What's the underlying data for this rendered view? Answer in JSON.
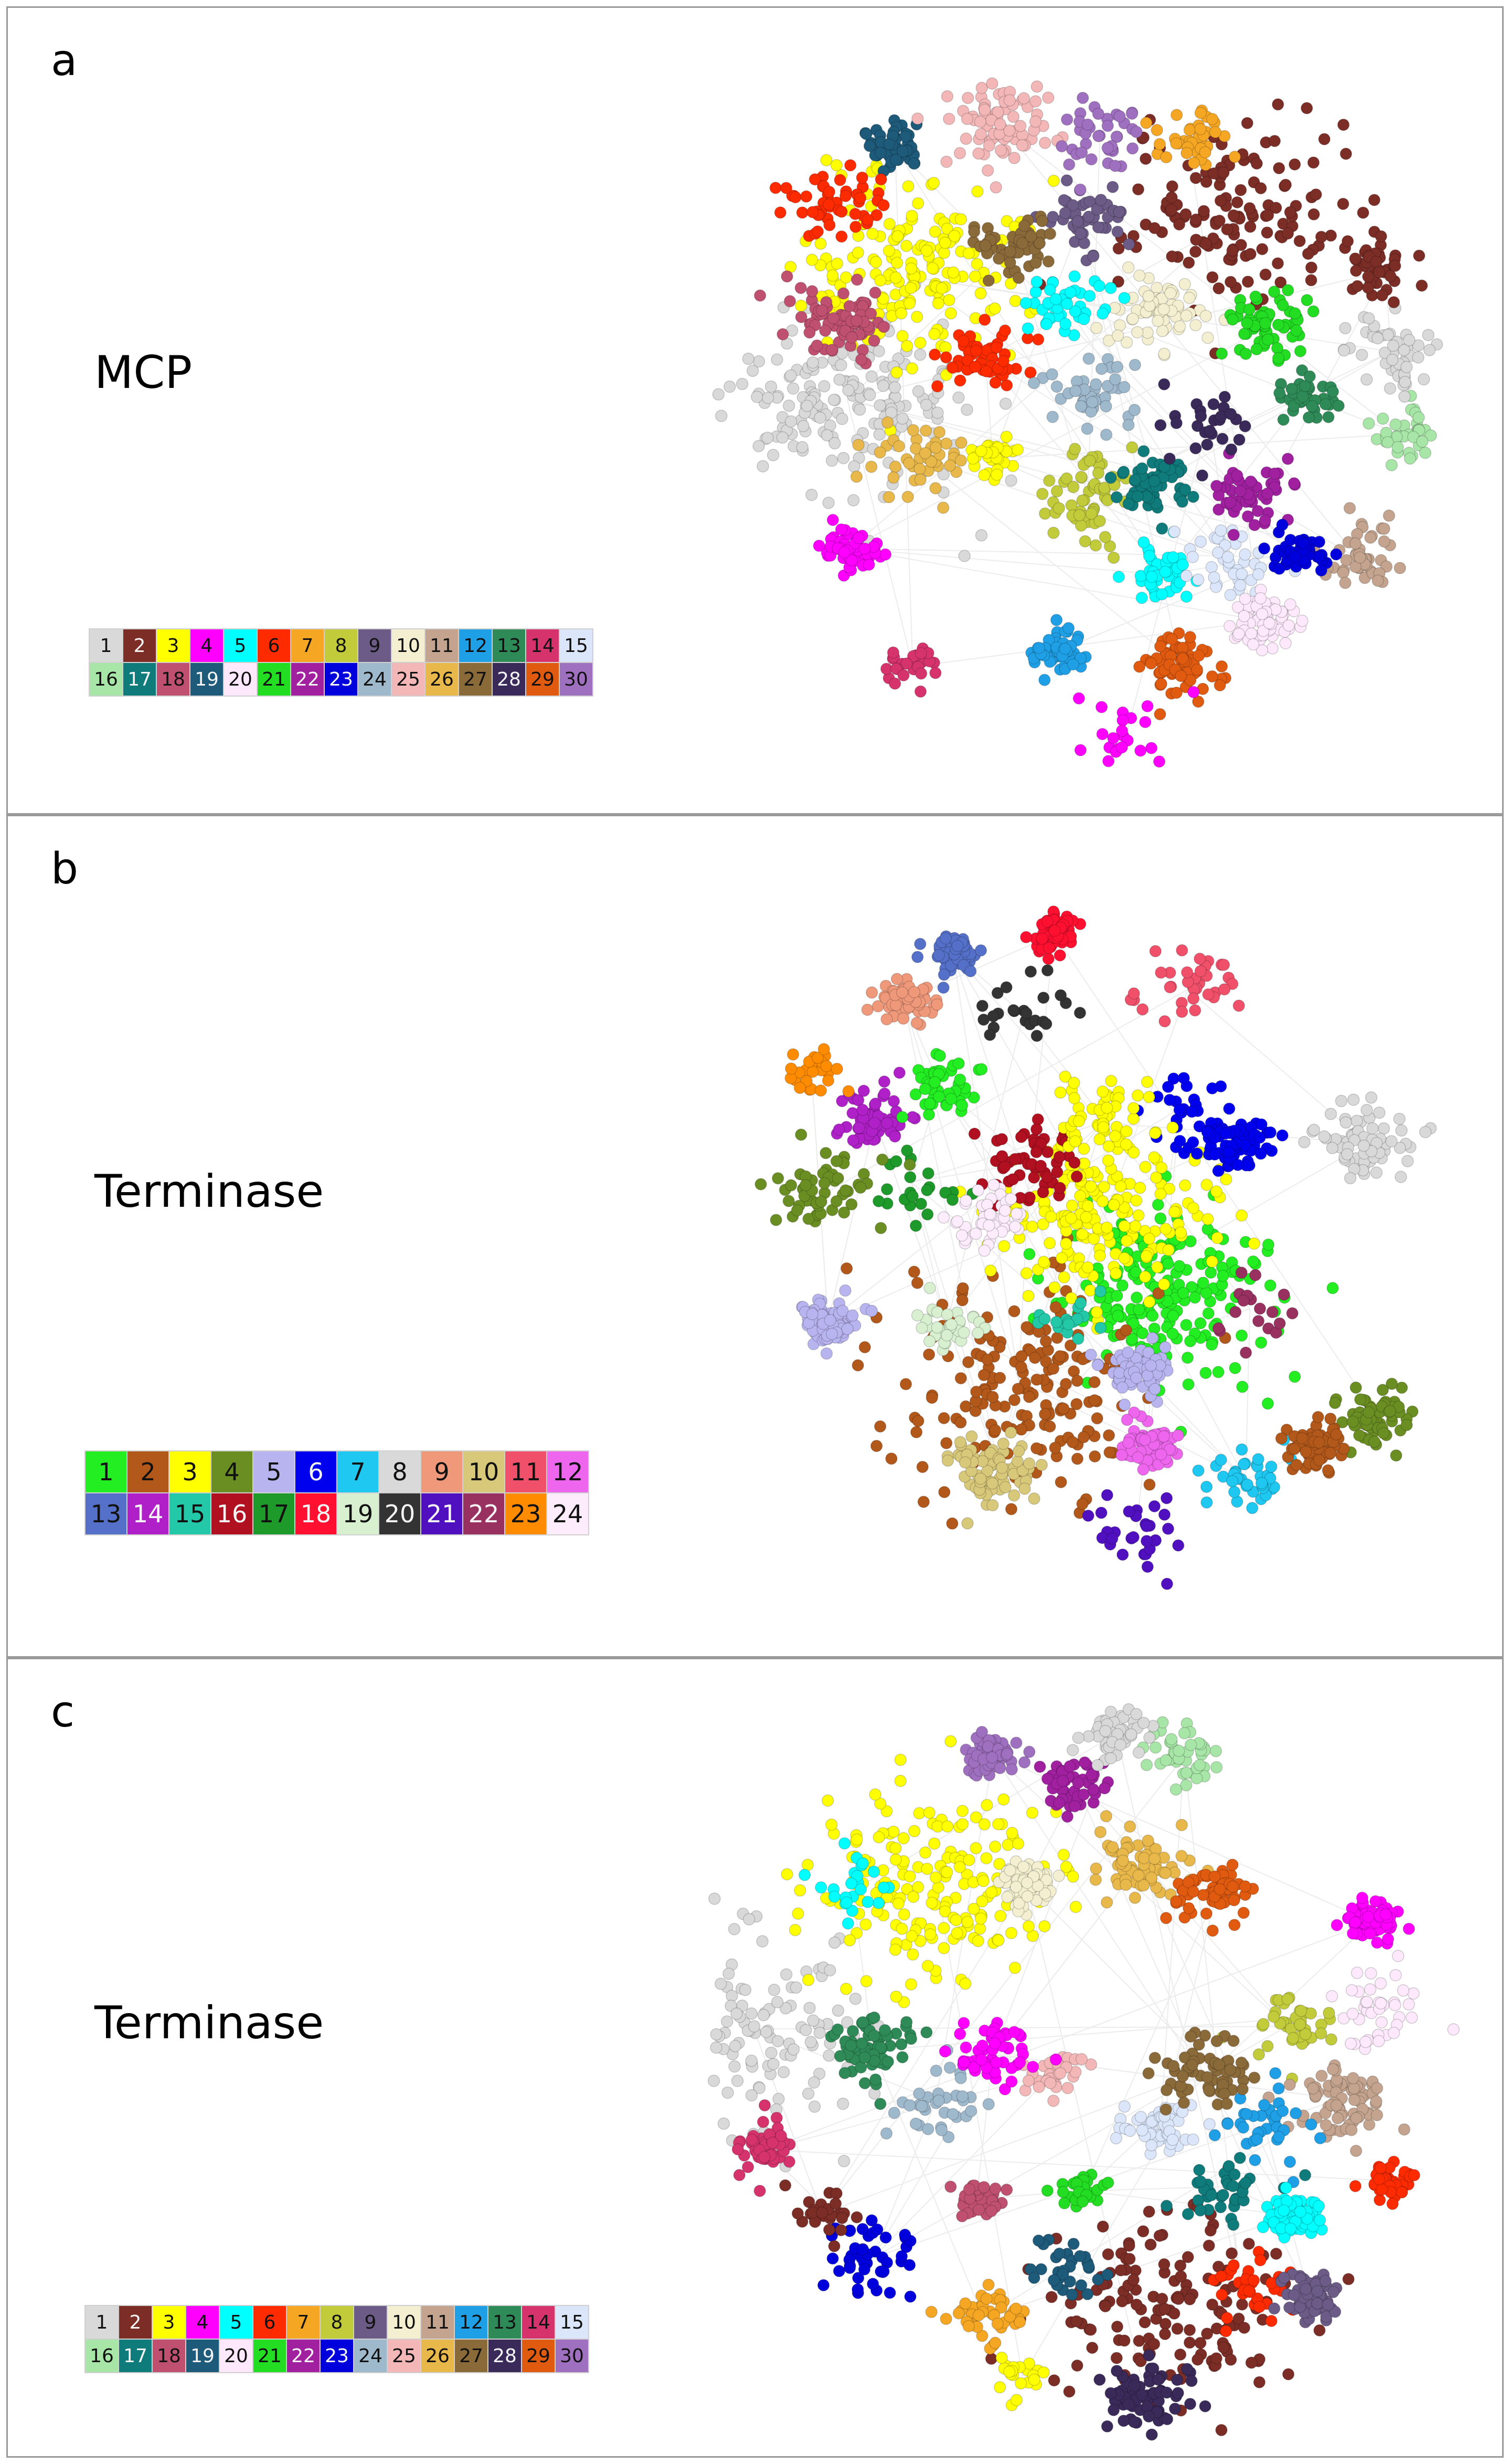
{
  "panels": [
    {
      "id": "a",
      "letter": "a",
      "title": "MCP",
      "legend": [
        {
          "n": "1",
          "color": "#d9d9d9"
        },
        {
          "n": "2",
          "color": "#7b2d26"
        },
        {
          "n": "3",
          "color": "#ffff00"
        },
        {
          "n": "4",
          "color": "#ff00ff"
        },
        {
          "n": "5",
          "color": "#00ffff"
        },
        {
          "n": "6",
          "color": "#ff2b00"
        },
        {
          "n": "7",
          "color": "#f5a623"
        },
        {
          "n": "8",
          "color": "#c2cc3a"
        },
        {
          "n": "9",
          "color": "#6b5b86"
        },
        {
          "n": "10",
          "color": "#f3efd0"
        },
        {
          "n": "11",
          "color": "#c4a48f"
        },
        {
          "n": "12",
          "color": "#1fa0e6"
        },
        {
          "n": "13",
          "color": "#2e8b57"
        },
        {
          "n": "14",
          "color": "#d6336c"
        },
        {
          "n": "15",
          "color": "#dbe6fb"
        },
        {
          "n": "16",
          "color": "#a8e6a8"
        },
        {
          "n": "17",
          "color": "#0f7b7b"
        },
        {
          "n": "18",
          "color": "#c05070"
        },
        {
          "n": "19",
          "color": "#1e5a7a"
        },
        {
          "n": "20",
          "color": "#fde9fb"
        },
        {
          "n": "21",
          "color": "#22dd22"
        },
        {
          "n": "22",
          "color": "#a020a0"
        },
        {
          "n": "23",
          "color": "#0000dd"
        },
        {
          "n": "24",
          "color": "#9eb8cc"
        },
        {
          "n": "25",
          "color": "#f4b7b7"
        },
        {
          "n": "26",
          "color": "#e8b84a"
        },
        {
          "n": "27",
          "color": "#8b6a3a"
        },
        {
          "n": "28",
          "color": "#3a2a5a"
        },
        {
          "n": "29",
          "color": "#e05a10"
        },
        {
          "n": "30",
          "color": "#a070c0"
        }
      ]
    },
    {
      "id": "b",
      "letter": "b",
      "title": "Terminase",
      "legend": [
        {
          "n": "1",
          "color": "#22ee22"
        },
        {
          "n": "2",
          "color": "#b2581a"
        },
        {
          "n": "3",
          "color": "#ffff00"
        },
        {
          "n": "4",
          "color": "#6b8e23"
        },
        {
          "n": "5",
          "color": "#b8b4f0"
        },
        {
          "n": "6",
          "color": "#0000ee"
        },
        {
          "n": "7",
          "color": "#1ec8f0"
        },
        {
          "n": "8",
          "color": "#d9d9d9"
        },
        {
          "n": "9",
          "color": "#f0987a"
        },
        {
          "n": "10",
          "color": "#d8c87a"
        },
        {
          "n": "11",
          "color": "#f0506a"
        },
        {
          "n": "12",
          "color": "#ee66ee"
        },
        {
          "n": "13",
          "color": "#5570c8"
        },
        {
          "n": "14",
          "color": "#b020c8"
        },
        {
          "n": "15",
          "color": "#22c8a8"
        },
        {
          "n": "16",
          "color": "#b01020"
        },
        {
          "n": "17",
          "color": "#1e9a2a"
        },
        {
          "n": "18",
          "color": "#ff1030"
        },
        {
          "n": "19",
          "color": "#d8f0d0"
        },
        {
          "n": "20",
          "color": "#333333"
        },
        {
          "n": "21",
          "color": "#5010c0"
        },
        {
          "n": "22",
          "color": "#983060"
        },
        {
          "n": "23",
          "color": "#ff8c00"
        },
        {
          "n": "24",
          "color": "#fcecfc"
        }
      ]
    },
    {
      "id": "c",
      "letter": "c",
      "title": "Terminase",
      "legend": [
        {
          "n": "1",
          "color": "#d9d9d9"
        },
        {
          "n": "2",
          "color": "#7b2d26"
        },
        {
          "n": "3",
          "color": "#ffff00"
        },
        {
          "n": "4",
          "color": "#ff00ff"
        },
        {
          "n": "5",
          "color": "#00ffff"
        },
        {
          "n": "6",
          "color": "#ff2b00"
        },
        {
          "n": "7",
          "color": "#f5a623"
        },
        {
          "n": "8",
          "color": "#c2cc3a"
        },
        {
          "n": "9",
          "color": "#6b5b86"
        },
        {
          "n": "10",
          "color": "#f3efd0"
        },
        {
          "n": "11",
          "color": "#c4a48f"
        },
        {
          "n": "12",
          "color": "#1fa0e6"
        },
        {
          "n": "13",
          "color": "#2e8b57"
        },
        {
          "n": "14",
          "color": "#d6336c"
        },
        {
          "n": "15",
          "color": "#dbe6fb"
        },
        {
          "n": "16",
          "color": "#a8e6a8"
        },
        {
          "n": "17",
          "color": "#0f7b7b"
        },
        {
          "n": "18",
          "color": "#c05070"
        },
        {
          "n": "19",
          "color": "#1e5a7a"
        },
        {
          "n": "20",
          "color": "#fde9fb"
        },
        {
          "n": "21",
          "color": "#22dd22"
        },
        {
          "n": "22",
          "color": "#a020a0"
        },
        {
          "n": "23",
          "color": "#0000dd"
        },
        {
          "n": "24",
          "color": "#9eb8cc"
        },
        {
          "n": "25",
          "color": "#f4b7b7"
        },
        {
          "n": "26",
          "color": "#e8b84a"
        },
        {
          "n": "27",
          "color": "#8b6a3a"
        },
        {
          "n": "28",
          "color": "#3a2a5a"
        },
        {
          "n": "29",
          "color": "#e05a10"
        },
        {
          "n": "30",
          "color": "#a070c0"
        }
      ]
    }
  ]
}
